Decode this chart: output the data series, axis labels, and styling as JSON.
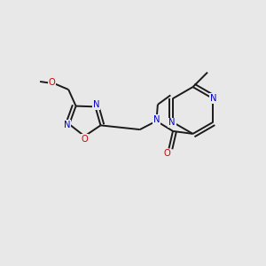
{
  "bg_color": "#e8e8e8",
  "bond_color": "#1a1a1a",
  "N_color": "#0000cc",
  "O_color": "#cc0000",
  "lw": 1.4,
  "fs": 7.2,
  "xlim": [
    0,
    10
  ],
  "ylim": [
    0,
    10
  ]
}
